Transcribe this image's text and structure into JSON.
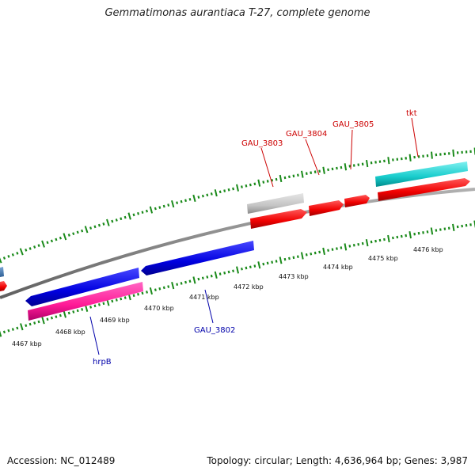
{
  "title": "Gemmatimonas aurantiaca T-27, complete genome",
  "footer": {
    "accession": "Accession: NC_012489",
    "summary": "Topology: circular; Length: 4,636,964 bp; Genes: 3,987"
  },
  "colors": {
    "forward_gene": "#ff0000",
    "reverse_gene": "#0000ee",
    "pseudo_gene": "#c8c8c8",
    "rrna_pink": "#ff2aa0",
    "cyan_gene": "#20d0d0",
    "tick": "#1a8a1a",
    "backbone": "#888888",
    "forward_label": "#cc0000",
    "reverse_label": "#0000aa"
  },
  "ticks": {
    "unit": "kbp",
    "labels": [
      "4467 kbp",
      "4468 kbp",
      "4469 kbp",
      "4470 kbp",
      "4471 kbp",
      "4472 kbp",
      "4473 kbp",
      "4474 kbp",
      "4475 kbp",
      "4476 kbp"
    ]
  },
  "gene_labels": {
    "forward": [
      "GAU_3803",
      "GAU_3804",
      "GAU_3805",
      "tkt"
    ],
    "reverse": [
      "GAU_3802",
      "hrpB"
    ]
  }
}
